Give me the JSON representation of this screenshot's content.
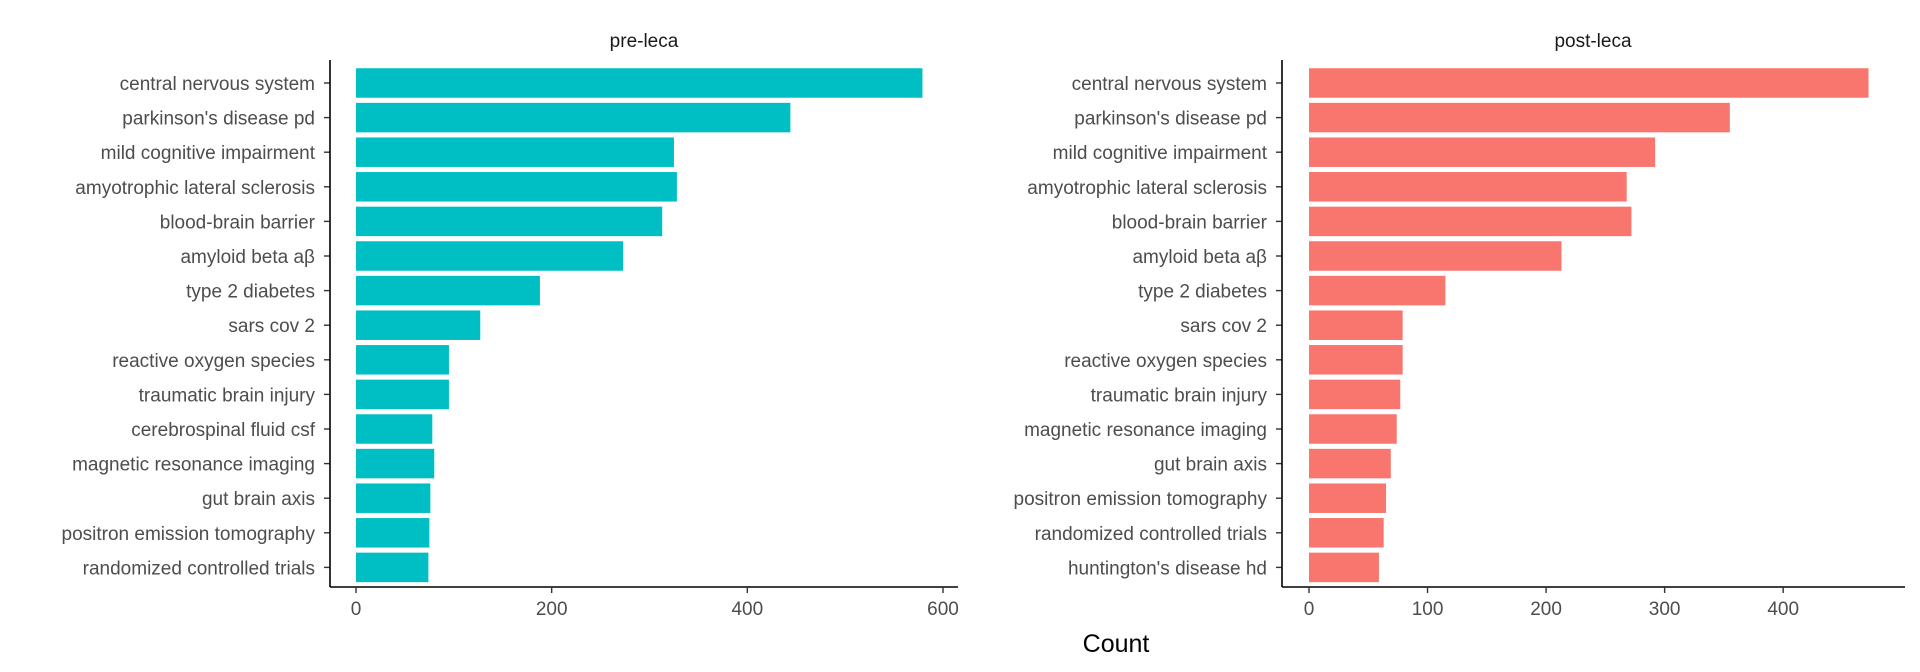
{
  "chart_data": {
    "type": "bar",
    "orientation": "horizontal",
    "xlabel": "Count",
    "ylabel": "",
    "grid": false,
    "legend": "none",
    "panels": [
      {
        "title": "pre-leca",
        "color": "#00BFC4",
        "xlim": [
          0,
          600
        ],
        "xticks": [
          0,
          200,
          400,
          600
        ],
        "categories": [
          "central nervous system",
          "parkinson's disease pd",
          "mild cognitive impairment",
          "amyotrophic lateral sclerosis",
          "blood-brain barrier",
          "amyloid beta aβ",
          "type 2 diabetes",
          "sars cov 2",
          "reactive oxygen species",
          "traumatic brain injury",
          "cerebrospinal fluid csf",
          "magnetic resonance imaging",
          "gut brain axis",
          "positron emission tomography",
          "randomized controlled trials"
        ],
        "values": [
          579,
          444,
          325,
          328,
          313,
          273,
          188,
          127,
          95,
          95,
          78,
          80,
          76,
          75,
          74
        ]
      },
      {
        "title": "post-leca",
        "color": "#F8766D",
        "xlim": [
          0,
          480
        ],
        "xticks": [
          0,
          100,
          200,
          300,
          400
        ],
        "categories": [
          "central nervous system",
          "parkinson's disease pd",
          "mild cognitive impairment",
          "amyotrophic lateral sclerosis",
          "blood-brain barrier",
          "amyloid beta aβ",
          "type 2 diabetes",
          "sars cov 2",
          "reactive oxygen species",
          "traumatic brain injury",
          "magnetic resonance imaging",
          "gut brain axis",
          "positron emission tomography",
          "randomized controlled trials",
          "huntington's disease hd"
        ],
        "values": [
          472,
          355,
          292,
          268,
          272,
          213,
          115,
          79,
          79,
          77,
          74,
          69,
          65,
          63,
          59
        ]
      }
    ]
  }
}
